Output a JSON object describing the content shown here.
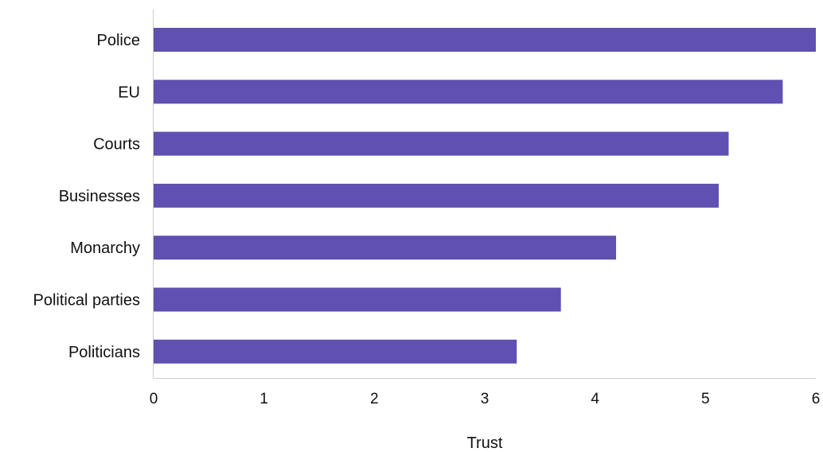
{
  "chart_data": {
    "type": "bar",
    "orientation": "horizontal",
    "categories": [
      "Police",
      "EU",
      "Courts",
      "Businesses",
      "Monarchy",
      "Political parties",
      "Politicians"
    ],
    "values": [
      6.0,
      5.7,
      5.21,
      5.12,
      4.19,
      3.69,
      3.29
    ],
    "xlabel": "Trust",
    "ylabel": "",
    "xlim": [
      0,
      6
    ],
    "xticks": [
      "0",
      "1",
      "2",
      "3",
      "4",
      "5",
      "6"
    ],
    "grid": false,
    "bar_color": "#5f50b1"
  }
}
